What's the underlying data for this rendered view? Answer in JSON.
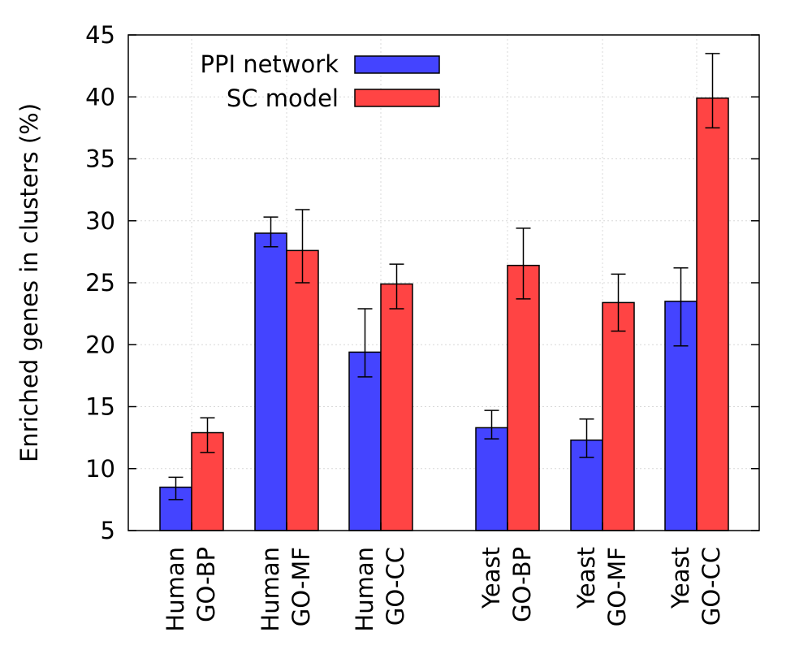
{
  "chart_data": {
    "type": "bar",
    "title": "",
    "xlabel": "",
    "ylabel": "Enriched genes in clusters (%)",
    "ylim": [
      5,
      45
    ],
    "yticks": [
      "5",
      "10",
      "15",
      "20",
      "25",
      "30",
      "35",
      "40",
      "45"
    ],
    "grid": true,
    "legend_position": "top-left",
    "categories": [
      {
        "line1": "Human",
        "line2": "GO-BP"
      },
      {
        "line1": "Human",
        "line2": "GO-MF"
      },
      {
        "line1": "Human",
        "line2": "GO-CC"
      },
      {
        "line1": "Yeast",
        "line2": "GO-BP"
      },
      {
        "line1": "Yeast",
        "line2": "GO-MF"
      },
      {
        "line1": "Yeast",
        "line2": "GO-CC"
      }
    ],
    "series": [
      {
        "name": "PPI network",
        "color": "#4444ff",
        "values": [
          8.5,
          29.0,
          19.4,
          13.3,
          12.3,
          23.5
        ],
        "err_low": [
          7.5,
          27.9,
          17.4,
          12.4,
          10.9,
          19.9
        ],
        "err_high": [
          9.3,
          30.3,
          22.9,
          14.7,
          14.0,
          26.2
        ]
      },
      {
        "name": "SC model",
        "color": "#ff4444",
        "values": [
          12.9,
          27.6,
          24.9,
          26.4,
          23.4,
          39.9
        ],
        "err_low": [
          11.3,
          25.0,
          22.9,
          23.7,
          21.1,
          37.5
        ],
        "err_high": [
          14.1,
          30.9,
          26.5,
          29.4,
          25.7,
          43.5
        ]
      }
    ]
  }
}
